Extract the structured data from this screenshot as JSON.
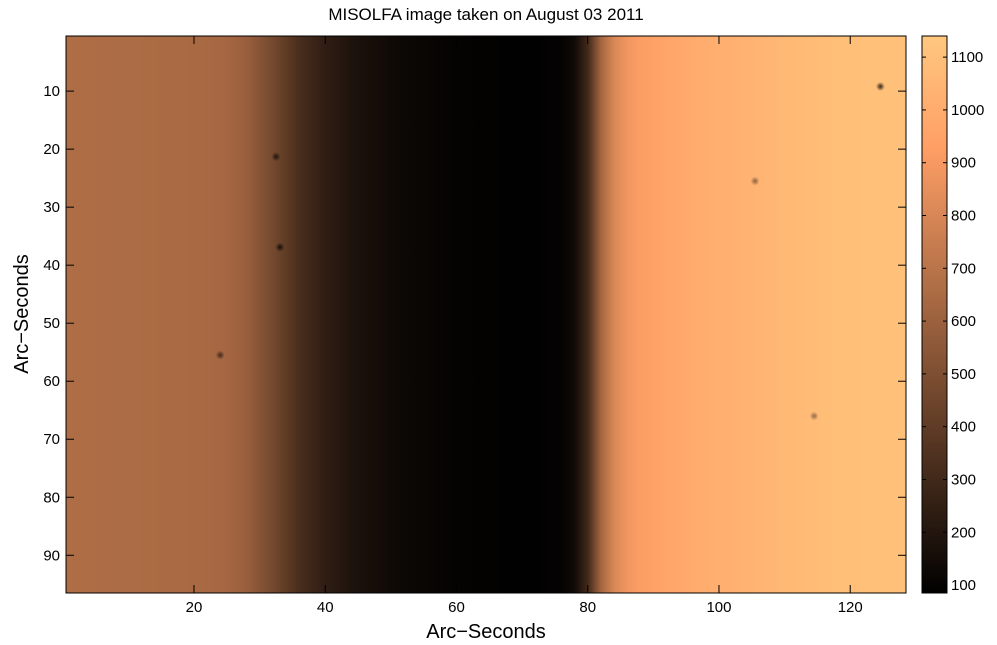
{
  "chart_data": {
    "type": "heatmap",
    "title": "MISOLFA image taken on August 03 2011",
    "xlabel": "Arc−Seconds",
    "ylabel": "Arc−Seconds",
    "xlim": [
      0.5,
      128.5
    ],
    "ylim": [
      96.5,
      0.5
    ],
    "y_axis_direction": "top-to-bottom",
    "x_ticks": [
      20,
      40,
      60,
      80,
      100,
      120
    ],
    "x_tick_labels": [
      "20",
      "40",
      "60",
      "80",
      "100",
      "120"
    ],
    "y_ticks": [
      10,
      20,
      30,
      40,
      50,
      60,
      70,
      80,
      90
    ],
    "y_tick_labels": [
      "10",
      "20",
      "30",
      "40",
      "50",
      "60",
      "70",
      "80",
      "90"
    ],
    "colorbar": {
      "range": [
        85,
        1140
      ],
      "ticks": [
        100,
        200,
        300,
        400,
        500,
        600,
        700,
        800,
        900,
        1000,
        1100
      ],
      "tick_labels": [
        "100",
        "200",
        "300",
        "400",
        "500",
        "600",
        "700",
        "800",
        "900",
        "1000",
        "1100"
      ],
      "colormap": "copper",
      "low_color": "#000000",
      "high_color": "#ffc77f"
    },
    "column_profile": {
      "x": [
        1,
        10,
        20,
        25,
        28,
        32,
        36,
        40,
        44,
        48,
        52,
        56,
        60,
        64,
        68,
        72,
        76,
        78,
        80,
        82,
        84,
        86,
        88,
        92,
        96,
        100,
        104,
        108,
        112,
        116,
        120,
        124,
        128
      ],
      "values": [
        660,
        655,
        645,
        630,
        590,
        470,
        330,
        240,
        185,
        150,
        125,
        110,
        100,
        95,
        92,
        92,
        100,
        140,
        300,
        620,
        800,
        880,
        920,
        960,
        990,
        1010,
        1030,
        1050,
        1070,
        1085,
        1095,
        1100,
        1100
      ]
    },
    "spots": [
      {
        "x": 124.6,
        "y": 9.2,
        "value": 180
      },
      {
        "x": 33.1,
        "y": 36.9,
        "value": 120
      },
      {
        "x": 32.5,
        "y": 21.3,
        "value": 350
      },
      {
        "x": 105.5,
        "y": 25.5,
        "value": 900
      },
      {
        "x": 114.5,
        "y": 66.0,
        "value": 950
      },
      {
        "x": 24.0,
        "y": 55.5,
        "value": 560
      }
    ]
  }
}
